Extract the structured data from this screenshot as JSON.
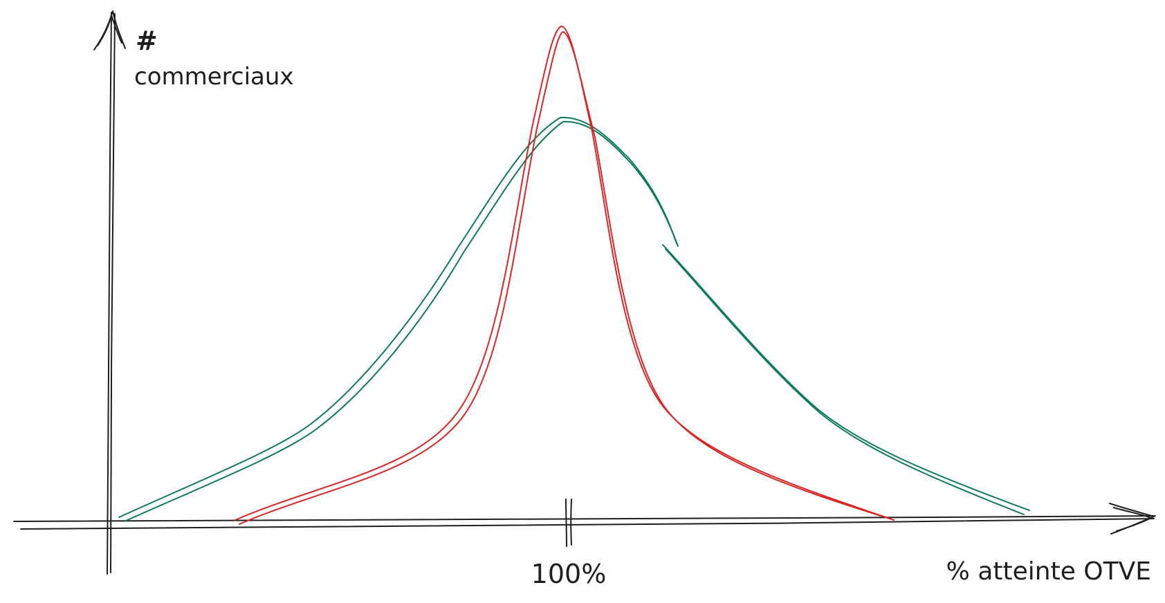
{
  "y_axis": {
    "symbol": "#",
    "label": "commerciaux"
  },
  "x_axis": {
    "label": "% atteinte OTVE",
    "center_tick_label": "100%"
  },
  "colors": {
    "axis": "#1e1e1e",
    "wide_curve": "#0b7a55",
    "narrow_curve": "#d92526"
  }
}
